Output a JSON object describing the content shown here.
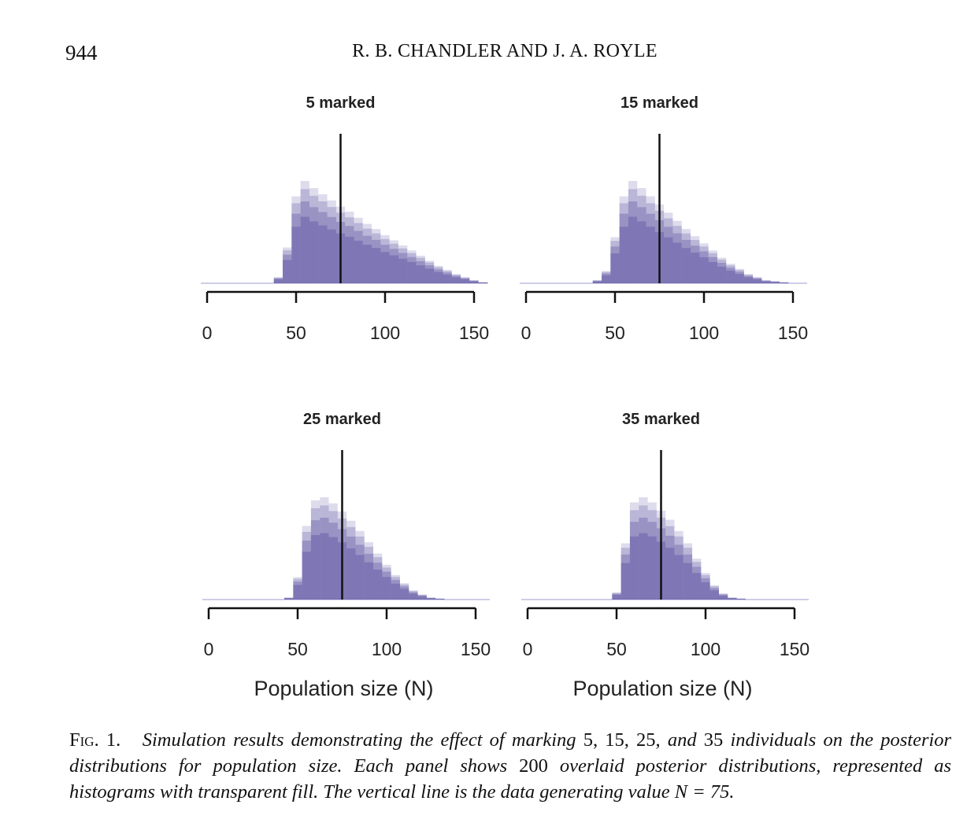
{
  "header": {
    "page_number": "944",
    "running_head": "R. B. CHANDLER AND J. A. ROYLE"
  },
  "caption": {
    "label": "Fig.",
    "number": "1.",
    "text_1": "Simulation results demonstrating the effect of marking",
    "values": "5, 15, 25,",
    "and": "and",
    "value_last": "35",
    "text_2": "individuals on the posterior distributions for population size. Each panel shows",
    "count": "200",
    "text_3": "overlaid posterior distributions, represented as histograms with transparent fill. The vertical line is the data generating value",
    "n_eq": "N = 75."
  },
  "colors": {
    "fill": "#5a50a0",
    "ink": "#111111"
  },
  "chart_data": [
    {
      "type": "bar",
      "title": "5 marked",
      "xlabel": "",
      "xlim": [
        0,
        150
      ],
      "x_ticks": [
        "0",
        "50",
        "100",
        "150"
      ],
      "reference_line": 75,
      "bin_width": 5,
      "bins": [
        40,
        45,
        50,
        55,
        60,
        65,
        70,
        75,
        80,
        85,
        90,
        95,
        100,
        105,
        110,
        115,
        120,
        125,
        130,
        135,
        140,
        145,
        150,
        155
      ],
      "density": [
        0.06,
        0.35,
        0.85,
        1.0,
        0.93,
        0.87,
        0.81,
        0.75,
        0.7,
        0.64,
        0.58,
        0.53,
        0.47,
        0.42,
        0.37,
        0.32,
        0.27,
        0.22,
        0.17,
        0.13,
        0.09,
        0.06,
        0.03,
        0.01
      ]
    },
    {
      "type": "bar",
      "title": "15 marked",
      "xlabel": "",
      "xlim": [
        0,
        150
      ],
      "x_ticks": [
        "0",
        "50",
        "100",
        "150"
      ],
      "reference_line": 75,
      "bin_width": 5,
      "bins": [
        40,
        45,
        50,
        55,
        60,
        65,
        70,
        75,
        80,
        85,
        90,
        95,
        100,
        105,
        110,
        115,
        120,
        125,
        130,
        135,
        140,
        145
      ],
      "density": [
        0.03,
        0.12,
        0.45,
        0.85,
        1.0,
        0.93,
        0.85,
        0.77,
        0.69,
        0.61,
        0.53,
        0.46,
        0.39,
        0.32,
        0.25,
        0.19,
        0.14,
        0.09,
        0.06,
        0.03,
        0.02,
        0.01
      ]
    },
    {
      "type": "bar",
      "title": "25 marked",
      "xlabel": "Population size (N)",
      "xlim": [
        0,
        150
      ],
      "x_ticks": [
        "0",
        "50",
        "100",
        "150"
      ],
      "reference_line": 75,
      "bin_width": 5,
      "bins": [
        45,
        50,
        55,
        60,
        65,
        70,
        75,
        80,
        85,
        90,
        95,
        100,
        105,
        110,
        115,
        120,
        125,
        130
      ],
      "density": [
        0.02,
        0.22,
        0.72,
        0.97,
        1.0,
        0.94,
        0.86,
        0.77,
        0.67,
        0.56,
        0.45,
        0.34,
        0.24,
        0.16,
        0.09,
        0.05,
        0.02,
        0.01
      ]
    },
    {
      "type": "bar",
      "title": "35 marked",
      "xlabel": "Population size (N)",
      "xlim": [
        0,
        150
      ],
      "x_ticks": [
        "0",
        "50",
        "100",
        "150"
      ],
      "reference_line": 75,
      "bin_width": 5,
      "bins": [
        50,
        55,
        60,
        65,
        70,
        75,
        80,
        85,
        90,
        95,
        100,
        105,
        110,
        115,
        120
      ],
      "density": [
        0.07,
        0.55,
        0.95,
        1.0,
        0.95,
        0.87,
        0.78,
        0.67,
        0.55,
        0.4,
        0.26,
        0.14,
        0.06,
        0.02,
        0.01
      ]
    }
  ]
}
